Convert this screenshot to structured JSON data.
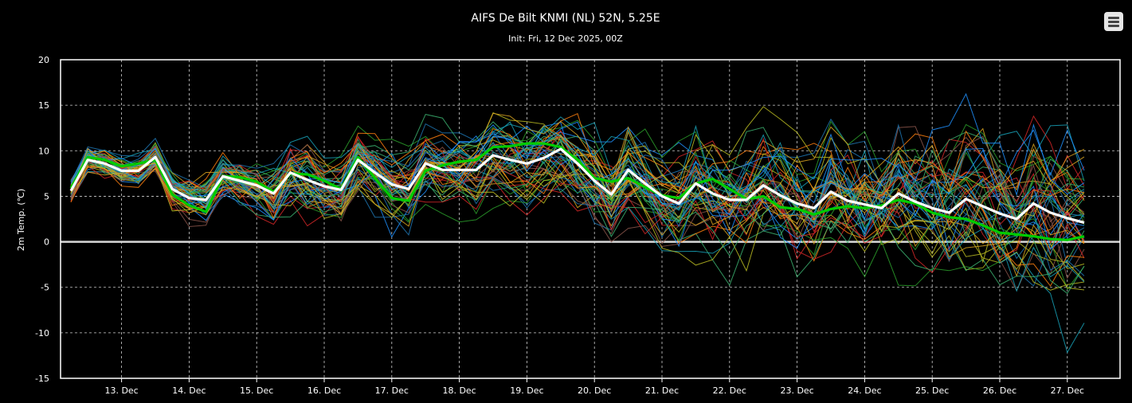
{
  "chart_data": {
    "type": "line",
    "title": "AIFS De Bilt KNMI (NL) 52N, 5.25E",
    "subtitle": "Init: Fri, 12 Dec 2025, 00Z",
    "xlabel": "",
    "ylabel": "2m Temp. (℃)",
    "ylim": [
      -15,
      20
    ],
    "yticks": [
      20,
      15,
      10,
      5,
      0,
      -5,
      -10,
      -15
    ],
    "x_tick_labels": [
      "13. Dec",
      "14. Dec",
      "15. Dec",
      "16. Dec",
      "17. Dec",
      "18. Dec",
      "19. Dec",
      "20. Dec",
      "21. Dec",
      "22. Dec",
      "23. Dec",
      "24. Dec",
      "25. Dec",
      "26. Dec",
      "27. Dec"
    ],
    "x_start": "12. Dec 06Z",
    "x_step_hours": 6,
    "grid": true,
    "zero_line": true,
    "ensemble_members": 50,
    "ensemble_spread": [
      3,
      2.5,
      2.5,
      2.5,
      2.5,
      3,
      4,
      4,
      4,
      4,
      4,
      5,
      6,
      6,
      6,
      5,
      6,
      6,
      6,
      6,
      6,
      6,
      7,
      7,
      7,
      7,
      7,
      7,
      7,
      8,
      8,
      8,
      8,
      8,
      8,
      8,
      8,
      9,
      9,
      9,
      9,
      10,
      10,
      10,
      10,
      10,
      10,
      11,
      11,
      11,
      11,
      12,
      12,
      12,
      12,
      12,
      13,
      13,
      13,
      13,
      13
    ],
    "ensemble_colors": [
      "#1f77b4",
      "#2ca02c",
      "#ff7f0e",
      "#d62728",
      "#17a2b8",
      "#bcbd22",
      "#8c564b",
      "#1e90ff",
      "#3cb371",
      "#daa520"
    ],
    "series": [
      {
        "name": "",
        "color": "#ffffff",
        "values": [
          5.6,
          9.0,
          8.6,
          7.8,
          7.8,
          9.3,
          5.8,
          4.8,
          4.6,
          7.2,
          6.7,
          6.2,
          5.3,
          7.6,
          6.8,
          6.1,
          5.7,
          9.0,
          7.6,
          6.3,
          5.8,
          8.6,
          7.9,
          7.9,
          7.9,
          9.5,
          9.0,
          8.6,
          9.2,
          10.2,
          8.6,
          6.7,
          5.2,
          7.9,
          6.4,
          5.0,
          4.2,
          6.4,
          5.3,
          4.6,
          4.6,
          6.2,
          5.1,
          4.2,
          3.7,
          5.5,
          4.5,
          4.1,
          3.7,
          5.3,
          4.4,
          3.7,
          3.2,
          4.7,
          3.9,
          3.1,
          2.5,
          4.2,
          3.2,
          2.6,
          2.1
        ]
      },
      {
        "name": "",
        "color": "#00cc00",
        "values": [
          5.9,
          9.3,
          9.0,
          8.3,
          8.6,
          9.0,
          5.2,
          4.0,
          3.3,
          7.2,
          7.1,
          6.6,
          5.5,
          7.5,
          7.4,
          6.7,
          5.8,
          9.3,
          7.0,
          4.8,
          4.5,
          7.8,
          8.4,
          8.8,
          9.0,
          10.4,
          10.5,
          10.8,
          10.8,
          10.4,
          9.0,
          7.0,
          6.6,
          7.0,
          6.0,
          5.1,
          4.8,
          6.4,
          6.9,
          5.8,
          4.7,
          5.0,
          3.8,
          3.6,
          3.0,
          3.6,
          3.9,
          3.7,
          4.0,
          4.6,
          4.2,
          3.2,
          2.7,
          2.5,
          1.8,
          1.0,
          0.8,
          0.6,
          0.3,
          0.2,
          0.6
        ]
      }
    ]
  }
}
